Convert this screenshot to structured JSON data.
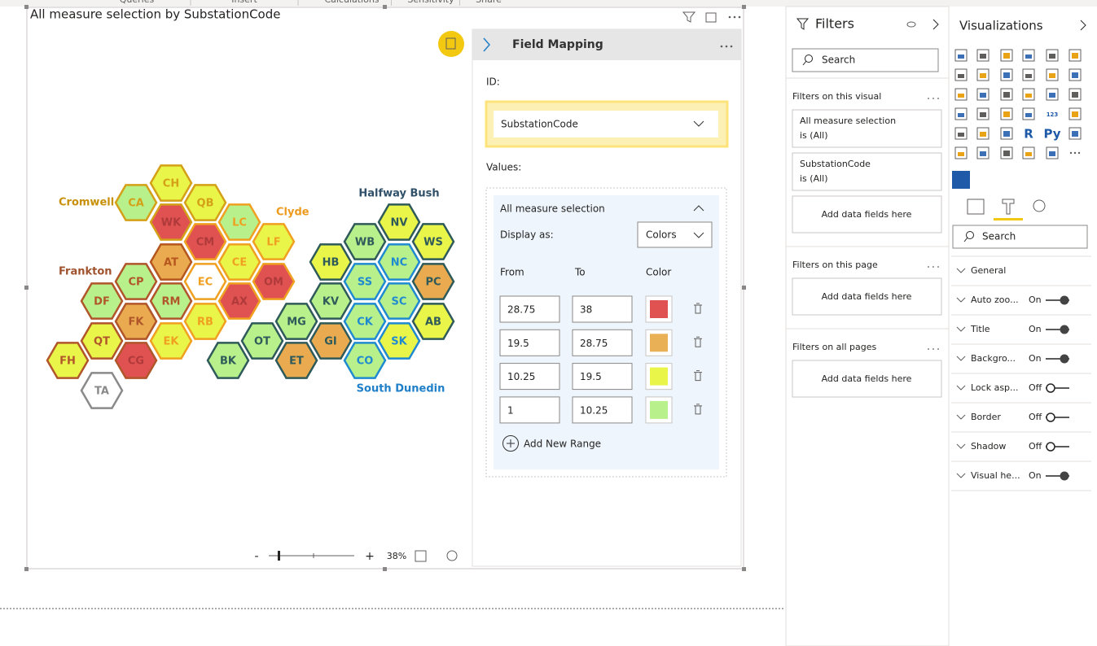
{
  "ribbon": {
    "tabs": [
      "Queries",
      "Insert",
      "Calculations",
      "Sensitivity",
      "Share"
    ]
  },
  "visual": {
    "title": "All measure selection by SubstationCode",
    "regions": [
      {
        "label": "Cromwell",
        "color": "#c8900a"
      },
      {
        "label": "Clyde",
        "color": "#ee9a1c"
      },
      {
        "label": "Frankton",
        "color": "#a0522d"
      },
      {
        "label": "Halfway Bush",
        "color": "#2f5068"
      },
      {
        "label": "South Dunedin",
        "color": "#1f7fc8"
      }
    ],
    "hexes": [
      {
        "label": "CH",
        "fill": "#eaf54a",
        "stroke": "#d4a017"
      },
      {
        "label": "CA",
        "fill": "#b8f08c",
        "stroke": "#d4a017"
      },
      {
        "label": "QB",
        "fill": "#eaf54a",
        "stroke": "#d4a017"
      },
      {
        "label": "WK",
        "fill": "#e05252",
        "stroke": "#d4a017"
      },
      {
        "label": "LC",
        "fill": "#b8f08c",
        "stroke": "#f0a020"
      },
      {
        "label": "CM",
        "fill": "#e05252",
        "stroke": "#f0a020"
      },
      {
        "label": "LF",
        "fill": "#eaf54a",
        "stroke": "#f0a020"
      },
      {
        "label": "AT",
        "fill": "#eaaa50",
        "stroke": "#b5561e"
      },
      {
        "label": "CE",
        "fill": "#eaf54a",
        "stroke": "#f0a020"
      },
      {
        "label": "OM",
        "fill": "#e05252",
        "stroke": "#f0a020"
      },
      {
        "label": "CP",
        "fill": "#b8f08c",
        "stroke": "#b0562a"
      },
      {
        "label": "EC",
        "fill": "#ffffff",
        "stroke": "#f0a020"
      },
      {
        "label": "DF",
        "fill": "#b8f08c",
        "stroke": "#b0562a"
      },
      {
        "label": "RM",
        "fill": "#b8f08c",
        "stroke": "#b0562a"
      },
      {
        "label": "AX",
        "fill": "#e05252",
        "stroke": "#f0a020"
      },
      {
        "label": "FK",
        "fill": "#eaaa50",
        "stroke": "#b0562a"
      },
      {
        "label": "RB",
        "fill": "#eaf54a",
        "stroke": "#f0a020"
      },
      {
        "label": "QT",
        "fill": "#eaf54a",
        "stroke": "#b0562a"
      },
      {
        "label": "EK",
        "fill": "#eaf54a",
        "stroke": "#f0a020"
      },
      {
        "label": "FH",
        "fill": "#eaf54a",
        "stroke": "#b0562a"
      },
      {
        "label": "CG",
        "fill": "#e05252",
        "stroke": "#b0562a"
      },
      {
        "label": "TA",
        "fill": "#ffffff",
        "stroke": "#8a8a8a"
      },
      {
        "label": "NV",
        "fill": "#eaf54a",
        "stroke": "#2f5a5a"
      },
      {
        "label": "WB",
        "fill": "#b8f08c",
        "stroke": "#2f5a5a"
      },
      {
        "label": "WS",
        "fill": "#eaf54a",
        "stroke": "#2f5a5a"
      },
      {
        "label": "HB",
        "fill": "#eaf54a",
        "stroke": "#2f5a5a"
      },
      {
        "label": "NC",
        "fill": "#b8f08c",
        "stroke": "#1f8ad0"
      },
      {
        "label": "SS",
        "fill": "#b8f08c",
        "stroke": "#1f8ad0"
      },
      {
        "label": "PC",
        "fill": "#eaaa50",
        "stroke": "#2f5a5a"
      },
      {
        "label": "KV",
        "fill": "#b8f08c",
        "stroke": "#2f5a5a"
      },
      {
        "label": "SC",
        "fill": "#b8f08c",
        "stroke": "#1f8ad0"
      },
      {
        "label": "MG",
        "fill": "#b8f08c",
        "stroke": "#2f5a5a"
      },
      {
        "label": "CK",
        "fill": "#b8f08c",
        "stroke": "#1f8ad0"
      },
      {
        "label": "AB",
        "fill": "#eaf54a",
        "stroke": "#2f5a5a"
      },
      {
        "label": "OT",
        "fill": "#b8f08c",
        "stroke": "#2f5a5a"
      },
      {
        "label": "GI",
        "fill": "#eaaa50",
        "stroke": "#2f5a5a"
      },
      {
        "label": "SK",
        "fill": "#eaf54a",
        "stroke": "#1f8ad0"
      },
      {
        "label": "BK",
        "fill": "#b8f08c",
        "stroke": "#2f5a5a"
      },
      {
        "label": "ET",
        "fill": "#eaaa50",
        "stroke": "#2f5a5a"
      },
      {
        "label": "CO",
        "fill": "#b8f08c",
        "stroke": "#1f8ad0"
      }
    ],
    "zoom": {
      "minus": "-",
      "plus": "+",
      "level": "38%"
    }
  },
  "field_mapping": {
    "title": "Field Mapping",
    "id_label": "ID:",
    "id_value": "SubstationCode",
    "values_label": "Values:",
    "measure": "All measure selection",
    "display_as_label": "Display as:",
    "display_as_value": "Colors",
    "columns": [
      "From",
      "To",
      "Color"
    ],
    "ranges": [
      {
        "from": 28.75,
        "to": 38,
        "color": "#e05252"
      },
      {
        "from": 19.5,
        "to": 28.75,
        "color": "#eab055"
      },
      {
        "from": 10.25,
        "to": 19.5,
        "color": "#eaf54a"
      },
      {
        "from": 1,
        "to": 10.25,
        "color": "#b8f08c"
      }
    ],
    "add_range": "Add New Range"
  },
  "filters": {
    "title": "Filters",
    "search": "Search",
    "sections": [
      {
        "heading": "Filters on this visual",
        "cards": [
          {
            "name": "All measure selection",
            "state": "is (All)"
          },
          {
            "name": "SubstationCode",
            "state": "is (All)"
          }
        ],
        "add": "Add data fields here"
      },
      {
        "heading": "Filters on this page",
        "cards": [],
        "add": "Add data fields here"
      },
      {
        "heading": "Filters on all pages",
        "cards": [],
        "add": "Add data fields here"
      }
    ]
  },
  "visualizations": {
    "title": "Visualizations",
    "icon_texts": [
      "123",
      "R",
      "Py"
    ],
    "search": "Search",
    "format_items": [
      {
        "label": "General"
      },
      {
        "label": "Auto zoo...",
        "toggle": "On"
      },
      {
        "label": "Title",
        "toggle": "On"
      },
      {
        "label": "Backgro...",
        "toggle": "On"
      },
      {
        "label": "Lock asp...",
        "toggle": "Off"
      },
      {
        "label": "Border",
        "toggle": "Off"
      },
      {
        "label": "Shadow",
        "toggle": "Off"
      },
      {
        "label": "Visual he...",
        "toggle": "On"
      }
    ]
  }
}
